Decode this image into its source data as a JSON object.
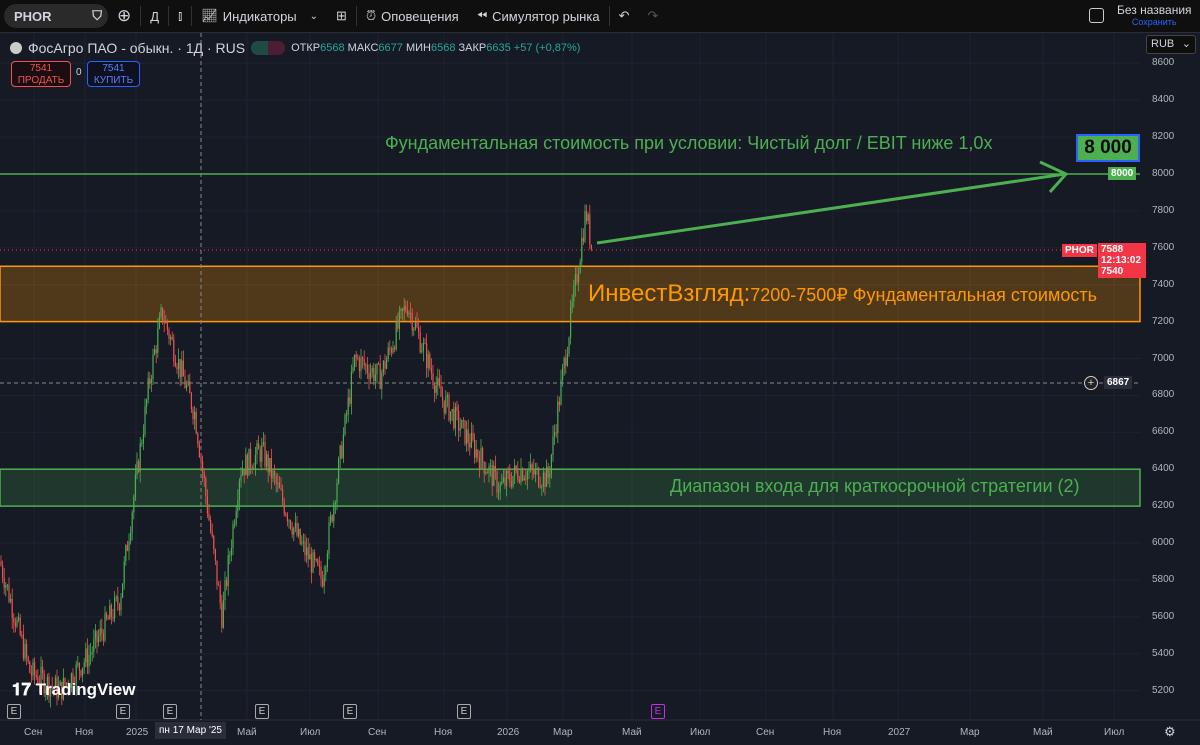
{
  "toolbar": {
    "symbol": "PHOR",
    "interval": "Д",
    "indicators": "Индикаторы",
    "alerts": "Оповещения",
    "replay": "Симулятор рынка",
    "layout_name": "Без названия",
    "save": "Сохранить"
  },
  "legend": {
    "title": "ФосАгро ПАО - обыкн. · 1Д · RUS",
    "open_label": "ОТКР",
    "open": "6568",
    "high_label": "МАКС",
    "high": "6677",
    "low_label": "МИН",
    "low": "6568",
    "close_label": "ЗАКР",
    "close": "6635",
    "change": "+57 (+0,87%)"
  },
  "trade": {
    "sell_price": "7541",
    "sell": "ПРОДАТЬ",
    "spread": "0",
    "buy_price": "7541",
    "buy": "КУПИТЬ"
  },
  "currency": "RUB",
  "price_axis": [
    "8600",
    "8400",
    "8200",
    "8000",
    "7800",
    "7600",
    "7400",
    "7200",
    "7000",
    "6800",
    "6600",
    "6400",
    "6200",
    "6000",
    "5800",
    "5600",
    "5400",
    "5200"
  ],
  "price_tags": {
    "level_8000": "8000",
    "symbol": "PHOR",
    "last": "7588",
    "countdown": "12:13:02",
    "bid": "7540",
    "crosshair": "6867"
  },
  "time_axis": [
    "Сен",
    "Ноя",
    "2025",
    "Май",
    "Июл",
    "Сен",
    "Ноя",
    "2026",
    "Мар",
    "Май",
    "Июл",
    "Сен",
    "Ноя",
    "2027",
    "Мар",
    "Май",
    "Июл"
  ],
  "crosshair_date": "пн 17 Мар '25",
  "annotations": {
    "target_text": "Фундаментальная стоимость при условии: Чистый долг / EBIT ниже 1,0x",
    "target_callout": "8 000",
    "zone_brand": "ИнвестВзгляд:",
    "zone_text": "7200-7500₽ Фундаментальная стоимость",
    "entry_text": "Диапазон входа для краткосрочной стратегии (2)"
  },
  "earnings_marker": "E",
  "logo": "TradingView",
  "colors": {
    "up": "#26a69a",
    "down": "#ef5350",
    "up_candle": "#4caf50",
    "zone_orange": "#ff9800",
    "zone_green": "#4caf50",
    "bg": "#161a25"
  },
  "chart_data": {
    "type": "candlestick",
    "price_levels": {
      "target": 8000,
      "fair_value_zone": [
        7200,
        7500
      ],
      "entry_zone": [
        6200,
        6400
      ],
      "crosshair": 6867,
      "last": 7588
    },
    "price_path": [
      [
        "2024-08",
        5900
      ],
      [
        "2024-09",
        5300
      ],
      [
        "2024-10",
        5200
      ],
      [
        "2024-11",
        5400
      ],
      [
        "2024-12",
        5700
      ],
      [
        "2025-01",
        6900
      ],
      [
        "2025-02",
        7250
      ],
      [
        "2025-03",
        6700
      ],
      [
        "2025-03",
        5600
      ],
      [
        "2025-04",
        6400
      ],
      [
        "2025-05",
        6500
      ],
      [
        "2025-06",
        6000
      ],
      [
        "2025-07",
        5800
      ],
      [
        "2025-08",
        7000
      ],
      [
        "2025-09",
        6900
      ],
      [
        "2025-10",
        7300
      ],
      [
        "2025-11",
        6800
      ],
      [
        "2025-12",
        6300
      ],
      [
        "2026-01",
        6400
      ],
      [
        "2026-02",
        6350
      ],
      [
        "2026-03",
        7800
      ],
      [
        "2026-03",
        7588
      ]
    ]
  }
}
